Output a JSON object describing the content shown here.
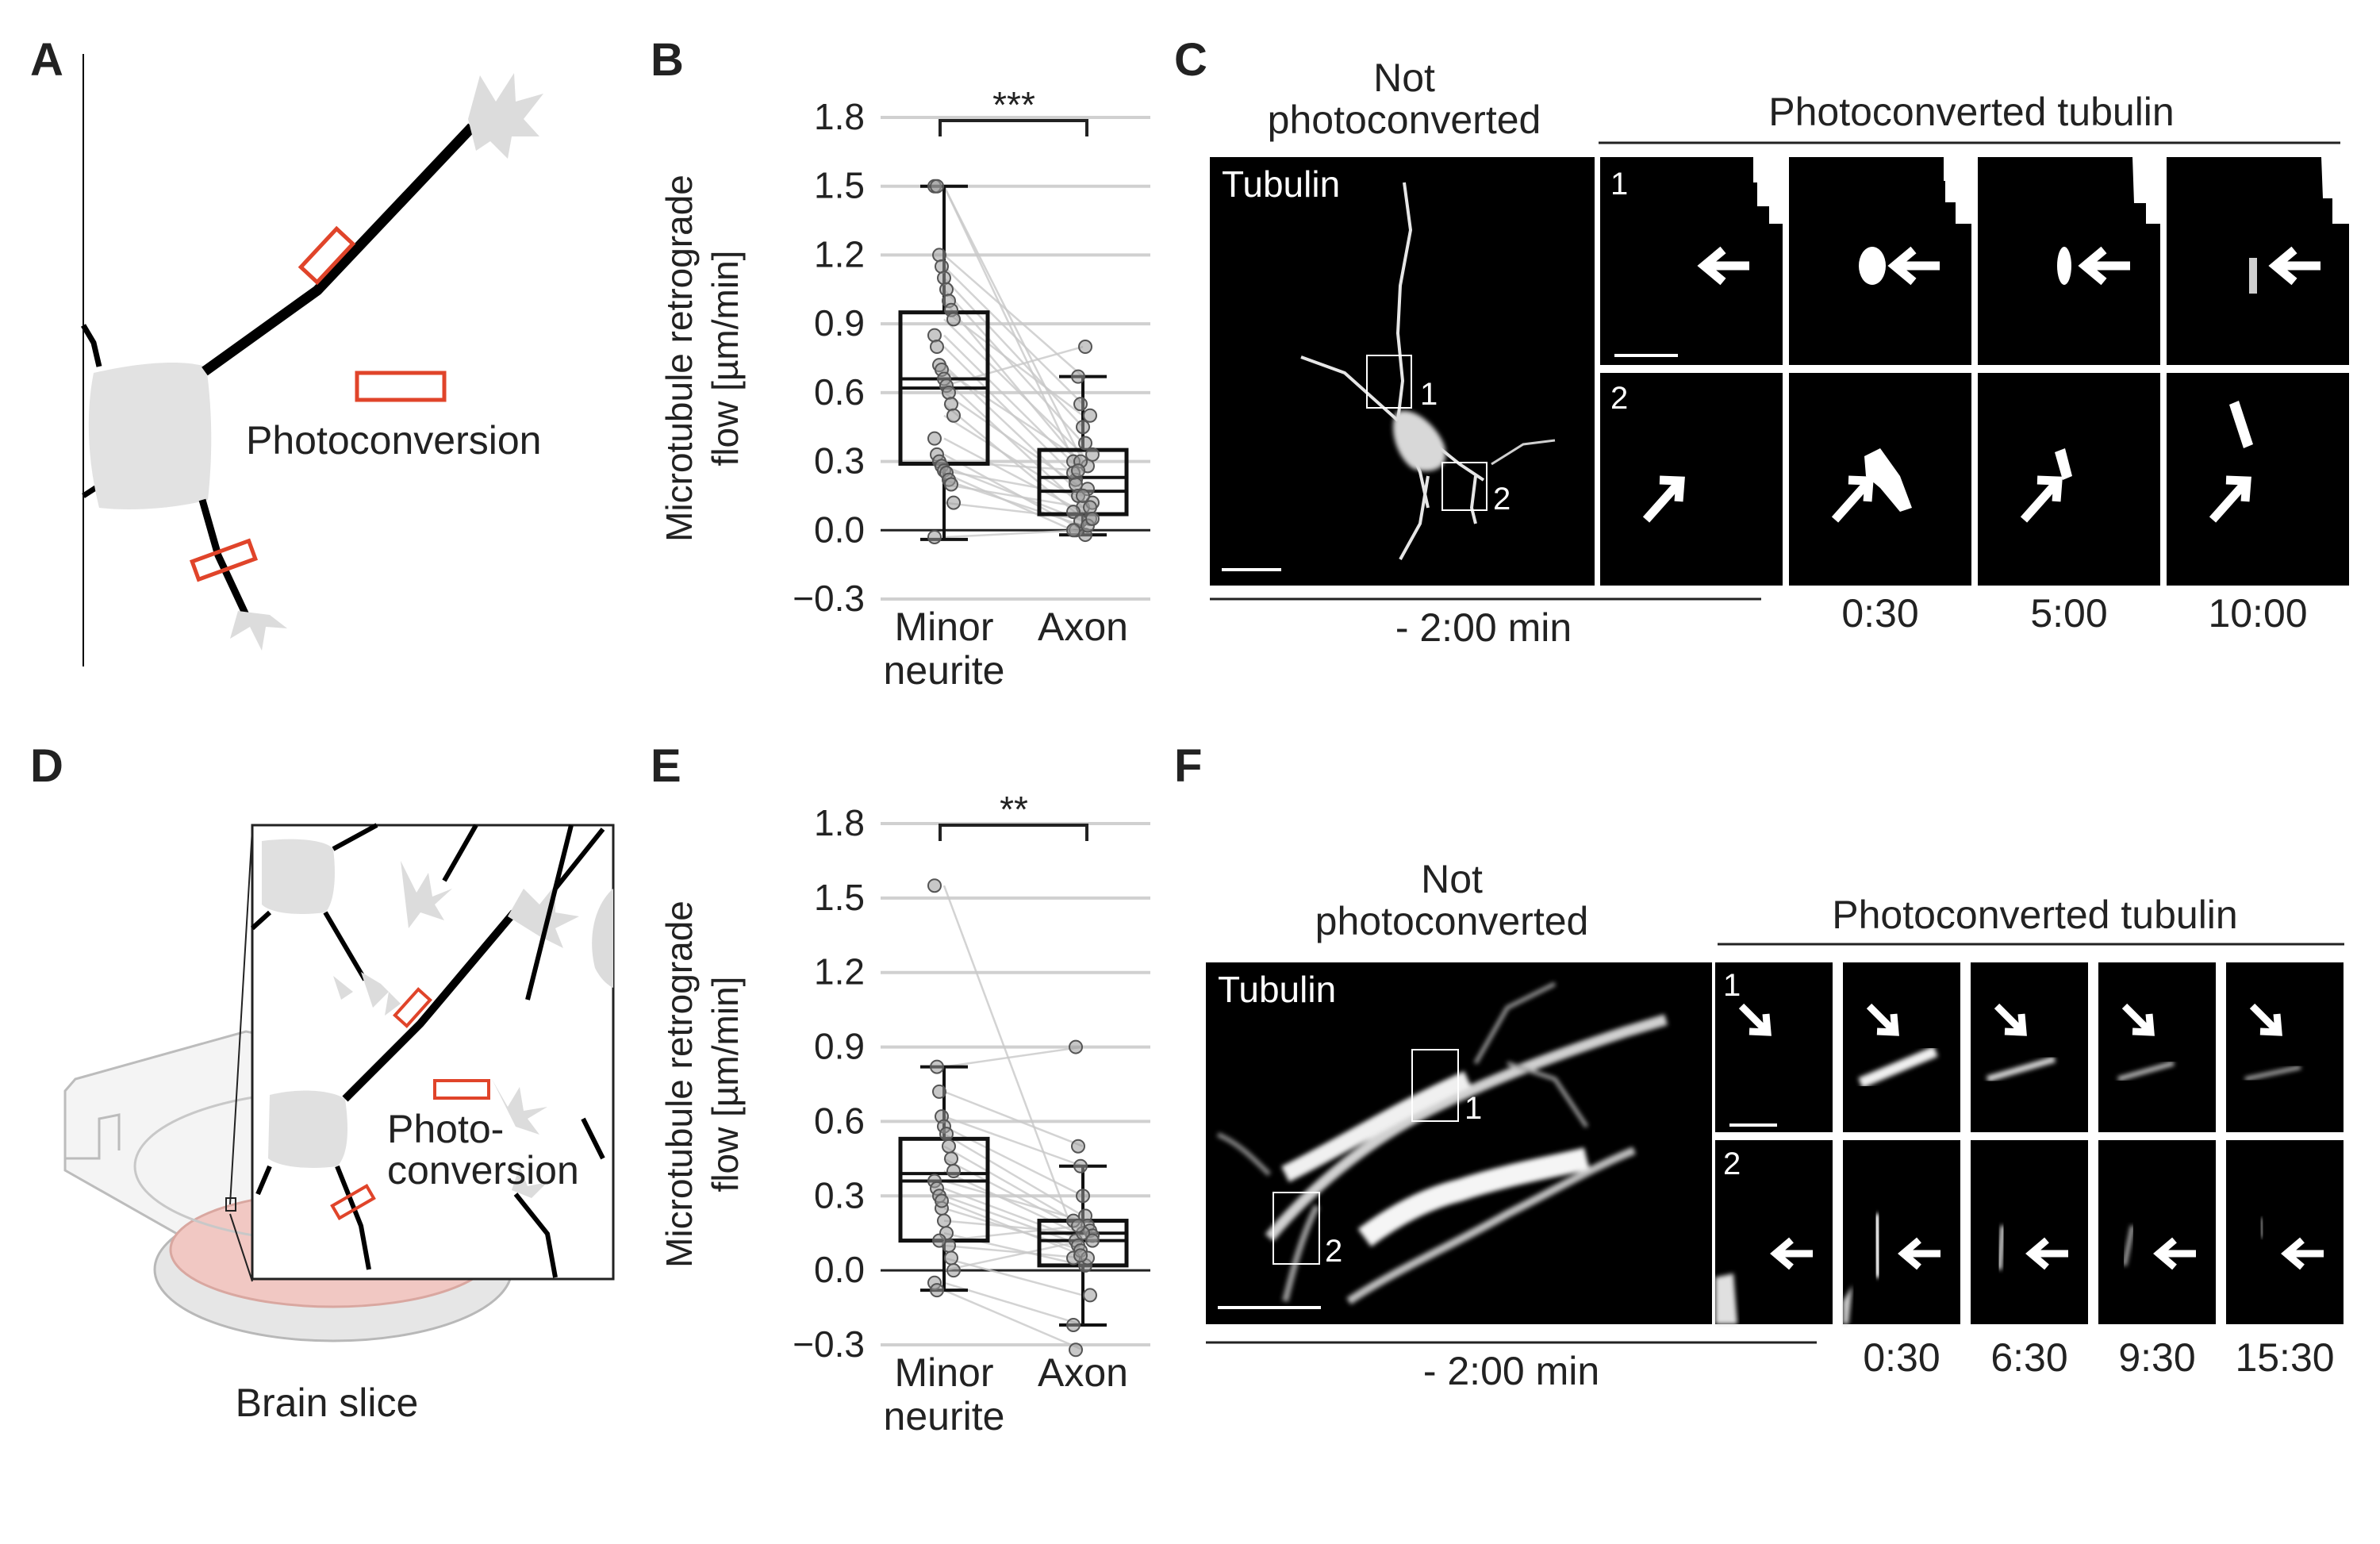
{
  "panels": {
    "A": {
      "letter": "A",
      "photoconversion_label": "Photoconversion",
      "colors": {
        "marker": "#e0442a",
        "cell": "#e2e2e2",
        "neurite": "#000000"
      }
    },
    "B": {
      "letter": "B",
      "significance": "***"
    },
    "C": {
      "letter": "C",
      "not_photoconverted_line1": "Not",
      "not_photoconverted_line2": "photoconverted",
      "photoconverted_label": "Photoconverted tubulin",
      "channel_label": "Tubulin",
      "roi_labels": [
        "1",
        "2"
      ],
      "row_labels": [
        "1",
        "2"
      ],
      "pre_time": "- 2:00 min",
      "times": [
        "0:30",
        "5:00",
        "10:00"
      ]
    },
    "D": {
      "letter": "D",
      "photoconversion_line1": "Photo-",
      "photoconversion_line2": "conversion",
      "brain_slice_label": "Brain slice",
      "colors": {
        "marker": "#e0442a",
        "slice": "#f1c8c3",
        "dish": "#d8d8d8"
      }
    },
    "E": {
      "letter": "E",
      "significance": "**"
    },
    "F": {
      "letter": "F",
      "not_photoconverted_line1": "Not",
      "not_photoconverted_line2": "photoconverted",
      "photoconverted_label": "Photoconverted tubulin",
      "channel_label": "Tubulin",
      "roi_labels": [
        "1",
        "2"
      ],
      "row_labels": [
        "1",
        "2"
      ],
      "pre_time": "- 2:00 min",
      "times": [
        "0:30",
        "6:30",
        "9:30",
        "15:30"
      ]
    }
  },
  "chart_data": [
    {
      "type": "box",
      "panel": "B",
      "categories": [
        "Minor neurite",
        "Axon"
      ],
      "category_lines": [
        [
          "Minor",
          "neurite"
        ],
        [
          "Axon"
        ]
      ],
      "ylabel_lines": [
        "Microtubule retrograde",
        "flow [µm/min]"
      ],
      "ylim": [
        -0.3,
        1.8
      ],
      "yticks": [
        -0.3,
        0.0,
        0.3,
        0.6,
        0.9,
        1.2,
        1.5,
        1.8
      ],
      "ytick_labels": [
        "−0.3",
        "0.0",
        "0.3",
        "0.6",
        "0.9",
        "1.2",
        "1.5",
        "1.8"
      ],
      "grid": true,
      "boxes": [
        {
          "name": "Minor neurite",
          "whisker_low": -0.04,
          "q1": 0.29,
          "median": 0.62,
          "mean": 0.66,
          "q3": 0.95,
          "whisker_high": 1.5
        },
        {
          "name": "Axon",
          "whisker_low": -0.02,
          "q1": 0.07,
          "median": 0.17,
          "mean": 0.23,
          "q3": 0.35,
          "whisker_high": 0.67
        }
      ],
      "pairs": [
        [
          1.5,
          0.3
        ],
        [
          1.5,
          0.22
        ],
        [
          1.2,
          0.67
        ],
        [
          1.15,
          0.55
        ],
        [
          1.1,
          0.45
        ],
        [
          1.05,
          0.38
        ],
        [
          1.0,
          0.28
        ],
        [
          0.96,
          0.5
        ],
        [
          0.92,
          0.33
        ],
        [
          0.85,
          0.25
        ],
        [
          0.8,
          0.2
        ],
        [
          0.72,
          0.15
        ],
        [
          0.7,
          0.3
        ],
        [
          0.66,
          0.1
        ],
        [
          0.63,
          0.8
        ],
        [
          0.6,
          0.18
        ],
        [
          0.55,
          0.05
        ],
        [
          0.5,
          0.12
        ],
        [
          0.4,
          0.08
        ],
        [
          0.33,
          0.0
        ],
        [
          0.3,
          0.26
        ],
        [
          0.28,
          0.04
        ],
        [
          0.26,
          0.15
        ],
        [
          0.25,
          -0.02
        ],
        [
          0.22,
          0.02
        ],
        [
          0.2,
          0.1
        ],
        [
          0.12,
          0.05
        ],
        [
          -0.03,
          0.0
        ]
      ]
    },
    {
      "type": "box",
      "panel": "E",
      "categories": [
        "Minor neurite",
        "Axon"
      ],
      "category_lines": [
        [
          "Minor",
          "neurite"
        ],
        [
          "Axon"
        ]
      ],
      "ylabel_lines": [
        "Microtubule retrograde",
        "flow [µm/min]"
      ],
      "ylim": [
        -0.3,
        1.8
      ],
      "yticks": [
        -0.3,
        0.0,
        0.3,
        0.6,
        0.9,
        1.2,
        1.5,
        1.8
      ],
      "ytick_labels": [
        "−0.3",
        "0.0",
        "0.3",
        "0.6",
        "0.9",
        "1.2",
        "1.5",
        "1.8"
      ],
      "grid": true,
      "boxes": [
        {
          "name": "Minor neurite",
          "whisker_low": -0.08,
          "q1": 0.12,
          "median": 0.39,
          "mean": 0.36,
          "q3": 0.53,
          "whisker_high": 0.82
        },
        {
          "name": "Axon",
          "whisker_low": -0.22,
          "q1": 0.02,
          "median": 0.12,
          "mean": 0.15,
          "q3": 0.2,
          "whisker_high": 0.42
        }
      ],
      "pairs": [
        [
          1.55,
          0.05
        ],
        [
          0.82,
          0.9
        ],
        [
          0.72,
          0.5
        ],
        [
          0.62,
          0.42
        ],
        [
          0.58,
          0.3
        ],
        [
          0.55,
          0.22
        ],
        [
          0.5,
          0.18
        ],
        [
          0.45,
          0.16
        ],
        [
          0.4,
          0.14
        ],
        [
          0.36,
          0.2
        ],
        [
          0.33,
          0.12
        ],
        [
          0.3,
          0.1
        ],
        [
          0.25,
          0.08
        ],
        [
          0.2,
          0.15
        ],
        [
          0.15,
          0.02
        ],
        [
          0.1,
          0.05
        ],
        [
          0.05,
          -0.1
        ],
        [
          0.0,
          0.12
        ],
        [
          -0.05,
          -0.22
        ],
        [
          -0.08,
          -0.32
        ],
        [
          0.12,
          0.18
        ],
        [
          0.28,
          0.06
        ]
      ]
    }
  ]
}
